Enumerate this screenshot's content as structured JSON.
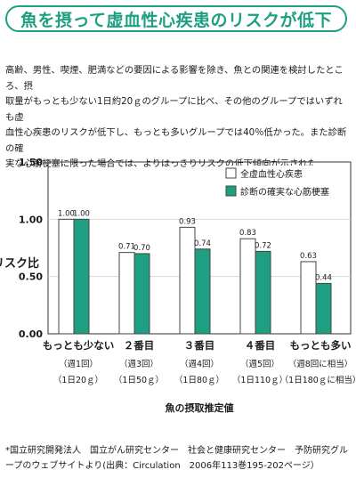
{
  "header": {
    "title": "魚を摂って虚血性心疾患のリスクが低下"
  },
  "intro_lines": [
    "高齢、男性、喫煙、肥満などの要因による影響を除き、魚との関連を検討したところ、摂",
    "取量がもっとも少ない1日約20ｇのグループに比べ、その他のグループではいずれも虚",
    "血性心疾患のリスクが低下し、もっとも多いグループでは40％低かった。また診断の確",
    "実な心筋梗塞に限った場合では、よりはっきりリスクの低下傾向が示された"
  ],
  "chart_data": {
    "type": "bar",
    "ylabel": "リスク比",
    "xlabel": "魚の摂取推定値",
    "ylim": [
      0,
      1.5
    ],
    "yticks": [
      "0.00",
      "0.50",
      "1.00",
      "1.50"
    ],
    "legend_position": "top-right",
    "categories": [
      {
        "name": "もっとも少ない",
        "freq": "（週1回）",
        "amount": "（1日20ｇ）"
      },
      {
        "name": "２番目",
        "freq": "（週3回）",
        "amount": "（1日50ｇ）"
      },
      {
        "name": "３番目",
        "freq": "（週4回）",
        "amount": "（1日80ｇ）"
      },
      {
        "name": "４番目",
        "freq": "（週5回）",
        "amount": "（1日110ｇ）"
      },
      {
        "name": "もっとも多い",
        "freq": "（週8回に相当）",
        "amount": "（1日180ｇに相当）"
      }
    ],
    "series": [
      {
        "name": "全虚血性心疾患",
        "color": "#ffffff",
        "values": [
          1.0,
          0.71,
          0.93,
          0.83,
          0.63
        ],
        "labels": [
          "1.00",
          "0.71",
          "0.93",
          "0.83",
          "0.63"
        ]
      },
      {
        "name": "診断の確実な心筋梗塞",
        "color": "#1e9f82",
        "values": [
          1.0,
          0.7,
          0.74,
          0.72,
          0.44
        ],
        "labels": [
          "1.00",
          "0.70",
          "0.74",
          "0.72",
          "0.44"
        ]
      }
    ]
  },
  "footnote_lines": [
    "*国立研究開発法人　国立がん研究センター　社会と健康研究センター　予防研究グル",
    "ープのウェブサイトより(出典：Circulation　2006年113巻195-202ページ）"
  ]
}
